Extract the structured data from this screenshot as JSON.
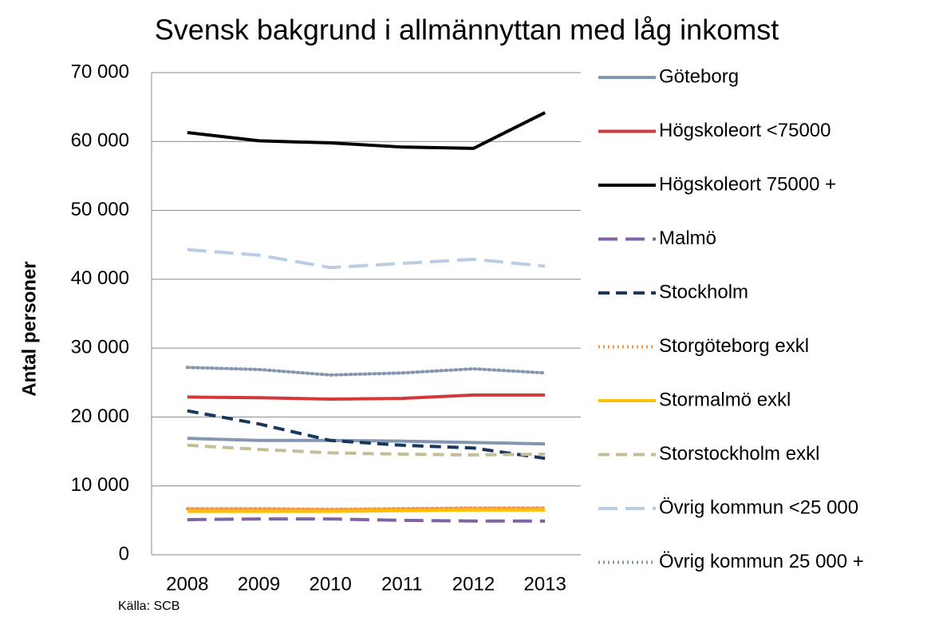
{
  "chart_data": {
    "type": "line",
    "title": "Svensk bakgrund i allmännyttan med låg inkomst",
    "y_label": "Antal personer",
    "source": "Källa: SCB",
    "categories": [
      "2008",
      "2009",
      "2010",
      "2011",
      "2012",
      "2013"
    ],
    "ylim": [
      0,
      70000
    ],
    "yticks": [
      {
        "value": 0,
        "label": "0"
      },
      {
        "value": 10000,
        "label": "10 000"
      },
      {
        "value": 20000,
        "label": "20 000"
      },
      {
        "value": 30000,
        "label": "30 000"
      },
      {
        "value": 40000,
        "label": "40 000"
      },
      {
        "value": 50000,
        "label": "50 000"
      },
      {
        "value": 60000,
        "label": "60 000"
      },
      {
        "value": 70000,
        "label": "70 000"
      }
    ],
    "grid": true,
    "legend": "right",
    "series": [
      {
        "name": "Göteborg",
        "color": "#8497b0",
        "style": "solid",
        "values": [
          16900,
          16600,
          16600,
          16500,
          16300,
          16100
        ]
      },
      {
        "name": "Högskoleort <75000",
        "color": "#d03a3a",
        "style": "solid",
        "values": [
          22900,
          22800,
          22600,
          22700,
          23200,
          23200
        ]
      },
      {
        "name": "Högskoleort 75000 +",
        "color": "#000000",
        "style": "solid",
        "values": [
          61300,
          60100,
          59800,
          59200,
          59000,
          64200
        ]
      },
      {
        "name": "Malmö",
        "color": "#8064a2",
        "style": "longdash",
        "values": [
          5100,
          5200,
          5200,
          5000,
          4900,
          4900
        ]
      },
      {
        "name": "Stockholm",
        "color": "#17375e",
        "style": "dash",
        "values": [
          20900,
          19000,
          16600,
          15900,
          15500,
          14000
        ]
      },
      {
        "name": "Storgöteborg exkl",
        "color": "#f79646",
        "style": "dot",
        "values": [
          6700,
          6700,
          6600,
          6700,
          6800,
          6800
        ]
      },
      {
        "name": "Stormalmö exkl",
        "color": "#ffc000",
        "style": "solid",
        "values": [
          6300,
          6300,
          6300,
          6400,
          6500,
          6500
        ]
      },
      {
        "name": "Storstockholm exkl",
        "color": "#c4bd97",
        "style": "dash",
        "values": [
          15900,
          15300,
          14800,
          14600,
          14500,
          14600
        ]
      },
      {
        "name": "Övrig kommun <25 000",
        "color": "#b9cde5",
        "style": "longdash",
        "values": [
          44300,
          43500,
          41700,
          42300,
          42900,
          41900
        ]
      },
      {
        "name": "Övrig kommun 25 000 +",
        "color": "#8497b0",
        "style": "dot",
        "values": [
          27200,
          26900,
          26100,
          26400,
          27000,
          26400
        ]
      }
    ]
  }
}
